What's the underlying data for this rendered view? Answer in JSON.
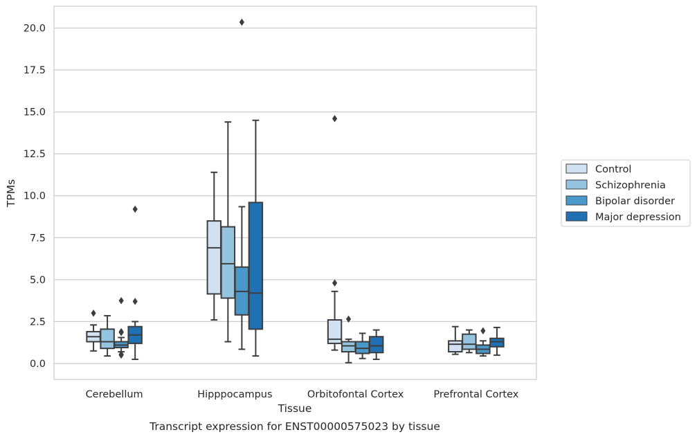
{
  "chart_data": {
    "type": "box",
    "caption": "Transcript expression for ENST00000575023 by tissue",
    "xlabel": "Tissue",
    "ylabel": "TPMs",
    "ylim": [
      -0.95,
      21.3
    ],
    "yticks": [
      0.0,
      2.5,
      5.0,
      7.5,
      10.0,
      12.5,
      15.0,
      17.5,
      20.0
    ],
    "ytick_labels": [
      "0.0",
      "2.5",
      "5.0",
      "7.5",
      "10.0",
      "12.5",
      "15.0",
      "17.5",
      "20.0"
    ],
    "grid": "horizontal",
    "legend_position": "right",
    "categories": [
      "Cerebellum",
      "Hipppocampus",
      "Orbitofontal Cortex",
      "Prefrontal Cortex"
    ],
    "series": [
      {
        "name": "Control",
        "color": "#d0e1f2",
        "boxes": [
          {
            "whislo": 0.75,
            "q1": 1.3,
            "med": 1.6,
            "q3": 1.9,
            "whishi": 2.3,
            "fliers": [
              3.0
            ]
          },
          {
            "whislo": 2.6,
            "q1": 4.15,
            "med": 6.9,
            "q3": 8.5,
            "whishi": 11.4,
            "fliers": []
          },
          {
            "whislo": 0.8,
            "q1": 1.2,
            "med": 1.45,
            "q3": 2.6,
            "whishi": 4.3,
            "fliers": [
              4.8,
              14.6
            ]
          },
          {
            "whislo": 0.55,
            "q1": 0.7,
            "med": 1.15,
            "q3": 1.35,
            "whishi": 2.2,
            "fliers": []
          }
        ]
      },
      {
        "name": "Schizophrenia",
        "color": "#94c4df",
        "boxes": [
          {
            "whislo": 0.45,
            "q1": 0.9,
            "med": 1.3,
            "q3": 2.05,
            "whishi": 2.85,
            "fliers": []
          },
          {
            "whislo": 1.3,
            "q1": 3.9,
            "med": 5.95,
            "q3": 8.15,
            "whishi": 14.4,
            "fliers": []
          },
          {
            "whislo": 0.05,
            "q1": 0.7,
            "med": 1.05,
            "q3": 1.3,
            "whishi": 1.45,
            "fliers": [
              2.65
            ]
          },
          {
            "whislo": 0.65,
            "q1": 0.85,
            "med": 1.15,
            "q3": 1.75,
            "whishi": 2.0,
            "fliers": []
          }
        ]
      },
      {
        "name": "Bipolar disorder",
        "color": "#4a98c9",
        "boxes": [
          {
            "whislo": 0.7,
            "q1": 0.95,
            "med": 1.1,
            "q3": 1.3,
            "whishi": 1.55,
            "fliers": [
              0.5,
              0.55,
              1.85,
              1.9,
              3.75
            ]
          },
          {
            "whislo": 0.85,
            "q1": 2.9,
            "med": 4.3,
            "q3": 5.75,
            "whishi": 9.35,
            "fliers": [
              20.35
            ]
          },
          {
            "whislo": 0.3,
            "q1": 0.6,
            "med": 0.9,
            "q3": 1.3,
            "whishi": 1.8,
            "fliers": []
          },
          {
            "whislo": 0.45,
            "q1": 0.6,
            "med": 0.85,
            "q3": 1.1,
            "whishi": 1.35,
            "fliers": [
              1.95
            ]
          }
        ]
      },
      {
        "name": "Major depression",
        "color": "#2070b4",
        "boxes": [
          {
            "whislo": 0.25,
            "q1": 1.2,
            "med": 1.7,
            "q3": 2.2,
            "whishi": 2.5,
            "fliers": [
              3.7,
              9.2
            ]
          },
          {
            "whislo": 0.45,
            "q1": 2.05,
            "med": 4.2,
            "q3": 9.6,
            "whishi": 14.5,
            "fliers": []
          },
          {
            "whislo": 0.25,
            "q1": 0.65,
            "med": 1.05,
            "q3": 1.6,
            "whishi": 2.0,
            "fliers": []
          },
          {
            "whislo": 0.5,
            "q1": 1.0,
            "med": 1.3,
            "q3": 1.5,
            "whishi": 2.15,
            "fliers": []
          }
        ]
      }
    ]
  }
}
